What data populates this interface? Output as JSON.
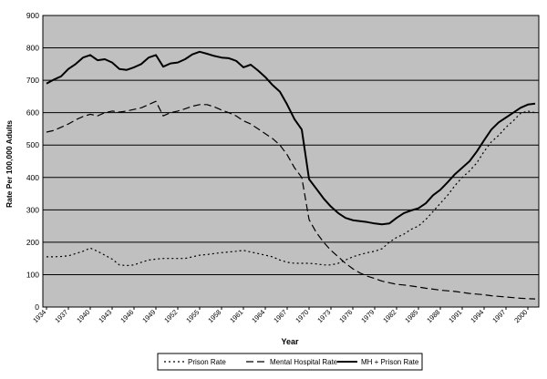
{
  "chart_data": {
    "type": "line",
    "title": "",
    "xlabel": "Year",
    "ylabel": "Rate Per 100,000 Adults",
    "xlim": [
      1934,
      2000
    ],
    "ylim": [
      0,
      900
    ],
    "grid": true,
    "plot_background": "#c0c0c0",
    "legend_position": "bottom",
    "x_ticks": [
      "1934",
      "1937",
      "1940",
      "1943",
      "1946",
      "1949",
      "1952",
      "1955",
      "1958",
      "1961",
      "1964",
      "1967",
      "1970",
      "1973",
      "1976",
      "1979",
      "1982",
      "1985",
      "1988",
      "1991",
      "1994",
      "1997",
      "2000"
    ],
    "y_ticks": [
      "0",
      "100",
      "200",
      "300",
      "400",
      "500",
      "600",
      "700",
      "800",
      "900"
    ],
    "series": [
      {
        "name": "Prison Rate",
        "dash": "dotted",
        "color": "#000000",
        "points": [
          [
            1934,
            155
          ],
          [
            1935,
            155
          ],
          [
            1936,
            156
          ],
          [
            1937,
            158
          ],
          [
            1938,
            165
          ],
          [
            1939,
            172
          ],
          [
            1940,
            182
          ],
          [
            1941,
            172
          ],
          [
            1942,
            160
          ],
          [
            1943,
            148
          ],
          [
            1944,
            130
          ],
          [
            1945,
            128
          ],
          [
            1946,
            130
          ],
          [
            1947,
            138
          ],
          [
            1948,
            145
          ],
          [
            1949,
            148
          ],
          [
            1950,
            150
          ],
          [
            1951,
            150
          ],
          [
            1952,
            150
          ],
          [
            1953,
            150
          ],
          [
            1954,
            155
          ],
          [
            1955,
            160
          ],
          [
            1956,
            162
          ],
          [
            1957,
            165
          ],
          [
            1958,
            168
          ],
          [
            1959,
            170
          ],
          [
            1960,
            172
          ],
          [
            1961,
            175
          ],
          [
            1962,
            170
          ],
          [
            1963,
            165
          ],
          [
            1964,
            160
          ],
          [
            1965,
            155
          ],
          [
            1966,
            145
          ],
          [
            1967,
            138
          ],
          [
            1968,
            135
          ],
          [
            1969,
            135
          ],
          [
            1970,
            135
          ],
          [
            1971,
            133
          ],
          [
            1972,
            130
          ],
          [
            1973,
            130
          ],
          [
            1974,
            135
          ],
          [
            1975,
            145
          ],
          [
            1976,
            155
          ],
          [
            1977,
            162
          ],
          [
            1978,
            168
          ],
          [
            1979,
            172
          ],
          [
            1980,
            180
          ],
          [
            1981,
            200
          ],
          [
            1982,
            215
          ],
          [
            1983,
            225
          ],
          [
            1984,
            240
          ],
          [
            1985,
            250
          ],
          [
            1986,
            270
          ],
          [
            1987,
            295
          ],
          [
            1988,
            320
          ],
          [
            1989,
            345
          ],
          [
            1990,
            375
          ],
          [
            1991,
            400
          ],
          [
            1992,
            420
          ],
          [
            1993,
            445
          ],
          [
            1994,
            480
          ],
          [
            1995,
            510
          ],
          [
            1996,
            530
          ],
          [
            1997,
            555
          ],
          [
            1998,
            575
          ],
          [
            1999,
            598
          ],
          [
            2000,
            605
          ],
          [
            2001,
            600
          ]
        ]
      },
      {
        "name": "Mental Hospital Rate",
        "dash": "dashed",
        "color": "#000000",
        "points": [
          [
            1934,
            540
          ],
          [
            1935,
            545
          ],
          [
            1936,
            555
          ],
          [
            1937,
            565
          ],
          [
            1938,
            578
          ],
          [
            1939,
            588
          ],
          [
            1940,
            595
          ],
          [
            1941,
            590
          ],
          [
            1942,
            600
          ],
          [
            1943,
            605
          ],
          [
            1944,
            602
          ],
          [
            1945,
            605
          ],
          [
            1946,
            610
          ],
          [
            1947,
            615
          ],
          [
            1948,
            625
          ],
          [
            1949,
            635
          ],
          [
            1950,
            590
          ],
          [
            1951,
            600
          ],
          [
            1952,
            605
          ],
          [
            1953,
            612
          ],
          [
            1954,
            620
          ],
          [
            1955,
            625
          ],
          [
            1956,
            625
          ],
          [
            1957,
            618
          ],
          [
            1958,
            608
          ],
          [
            1959,
            600
          ],
          [
            1960,
            590
          ],
          [
            1961,
            575
          ],
          [
            1962,
            565
          ],
          [
            1963,
            550
          ],
          [
            1964,
            535
          ],
          [
            1965,
            520
          ],
          [
            1966,
            500
          ],
          [
            1967,
            470
          ],
          [
            1968,
            430
          ],
          [
            1969,
            400
          ],
          [
            1970,
            270
          ],
          [
            1971,
            230
          ],
          [
            1972,
            200
          ],
          [
            1973,
            175
          ],
          [
            1974,
            155
          ],
          [
            1975,
            135
          ],
          [
            1976,
            118
          ],
          [
            1977,
            105
          ],
          [
            1978,
            95
          ],
          [
            1979,
            88
          ],
          [
            1980,
            80
          ],
          [
            1981,
            75
          ],
          [
            1982,
            70
          ],
          [
            1983,
            68
          ],
          [
            1984,
            65
          ],
          [
            1985,
            62
          ],
          [
            1986,
            58
          ],
          [
            1987,
            55
          ],
          [
            1988,
            52
          ],
          [
            1989,
            50
          ],
          [
            1990,
            48
          ],
          [
            1991,
            45
          ],
          [
            1992,
            42
          ],
          [
            1993,
            40
          ],
          [
            1994,
            38
          ],
          [
            1995,
            35
          ],
          [
            1996,
            33
          ],
          [
            1997,
            31
          ],
          [
            1998,
            29
          ],
          [
            1999,
            27
          ],
          [
            2000,
            26
          ],
          [
            2001,
            25
          ]
        ]
      },
      {
        "name": "MH + Prison Rate",
        "dash": "solid",
        "color": "#000000",
        "points": [
          [
            1934,
            690
          ],
          [
            1935,
            702
          ],
          [
            1936,
            712
          ],
          [
            1937,
            735
          ],
          [
            1938,
            750
          ],
          [
            1939,
            770
          ],
          [
            1940,
            778
          ],
          [
            1941,
            762
          ],
          [
            1942,
            765
          ],
          [
            1943,
            755
          ],
          [
            1944,
            735
          ],
          [
            1945,
            732
          ],
          [
            1946,
            740
          ],
          [
            1947,
            750
          ],
          [
            1948,
            770
          ],
          [
            1949,
            778
          ],
          [
            1950,
            742
          ],
          [
            1951,
            752
          ],
          [
            1952,
            755
          ],
          [
            1953,
            765
          ],
          [
            1954,
            780
          ],
          [
            1955,
            788
          ],
          [
            1956,
            782
          ],
          [
            1957,
            775
          ],
          [
            1958,
            770
          ],
          [
            1959,
            768
          ],
          [
            1960,
            760
          ],
          [
            1961,
            740
          ],
          [
            1962,
            748
          ],
          [
            1963,
            730
          ],
          [
            1964,
            710
          ],
          [
            1965,
            685
          ],
          [
            1966,
            665
          ],
          [
            1967,
            625
          ],
          [
            1968,
            580
          ],
          [
            1969,
            548
          ],
          [
            1970,
            395
          ],
          [
            1971,
            365
          ],
          [
            1972,
            335
          ],
          [
            1973,
            310
          ],
          [
            1974,
            290
          ],
          [
            1975,
            275
          ],
          [
            1976,
            268
          ],
          [
            1977,
            265
          ],
          [
            1978,
            262
          ],
          [
            1979,
            258
          ],
          [
            1980,
            255
          ],
          [
            1981,
            258
          ],
          [
            1982,
            275
          ],
          [
            1983,
            290
          ],
          [
            1984,
            298
          ],
          [
            1985,
            305
          ],
          [
            1986,
            320
          ],
          [
            1987,
            345
          ],
          [
            1988,
            362
          ],
          [
            1989,
            385
          ],
          [
            1990,
            410
          ],
          [
            1991,
            430
          ],
          [
            1992,
            450
          ],
          [
            1993,
            480
          ],
          [
            1994,
            515
          ],
          [
            1995,
            548
          ],
          [
            1996,
            570
          ],
          [
            1997,
            585
          ],
          [
            1998,
            600
          ],
          [
            1999,
            615
          ],
          [
            2000,
            625
          ],
          [
            2001,
            628
          ]
        ]
      }
    ]
  }
}
